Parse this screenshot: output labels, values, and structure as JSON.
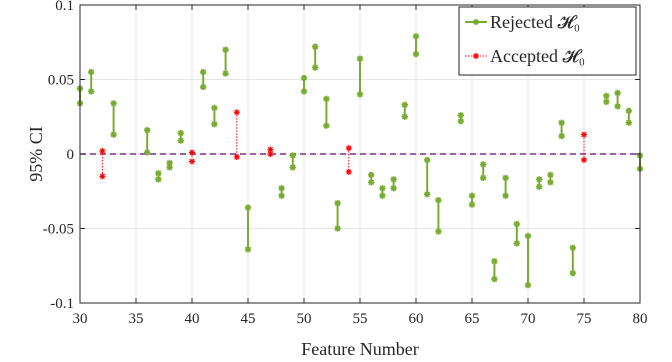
{
  "chart_data": {
    "type": "errorbar-interval",
    "xlabel": "Feature Number",
    "ylabel": "95% CI",
    "xlim": [
      30,
      80
    ],
    "ylim": [
      -0.1,
      0.1
    ],
    "xticks": [
      30,
      35,
      40,
      45,
      50,
      55,
      60,
      65,
      70,
      75,
      80
    ],
    "yticks": [
      -0.1,
      -0.05,
      0,
      0.05,
      0.1
    ],
    "ytick_labels": [
      "-0.1",
      "-0.05",
      "0",
      "0.05",
      "0.1"
    ],
    "grid": true,
    "legend_position": "top-right",
    "reference_line": {
      "y": 0,
      "style": "dashed",
      "color": "#7e2f8e"
    },
    "series": [
      {
        "name": "Rejected 𝓗₀",
        "color": "#77ac30",
        "style": "solid",
        "intervals": [
          {
            "x": 30,
            "low": 0.034,
            "high": 0.044
          },
          {
            "x": 31,
            "low": 0.042,
            "high": 0.055
          },
          {
            "x": 33,
            "low": 0.013,
            "high": 0.034
          },
          {
            "x": 36,
            "low": 0.001,
            "high": 0.016
          },
          {
            "x": 37,
            "low": -0.017,
            "high": -0.013
          },
          {
            "x": 38,
            "low": -0.009,
            "high": -0.006
          },
          {
            "x": 39,
            "low": 0.009,
            "high": 0.014
          },
          {
            "x": 41,
            "low": 0.045,
            "high": 0.055
          },
          {
            "x": 42,
            "low": 0.02,
            "high": 0.031
          },
          {
            "x": 43,
            "low": 0.054,
            "high": 0.07
          },
          {
            "x": 45,
            "low": -0.064,
            "high": -0.036
          },
          {
            "x": 48,
            "low": -0.028,
            "high": -0.023
          },
          {
            "x": 49,
            "low": -0.009,
            "high": -0.001
          },
          {
            "x": 50,
            "low": 0.042,
            "high": 0.051
          },
          {
            "x": 51,
            "low": 0.058,
            "high": 0.072
          },
          {
            "x": 52,
            "low": 0.019,
            "high": 0.037
          },
          {
            "x": 53,
            "low": -0.05,
            "high": -0.033
          },
          {
            "x": 55,
            "low": 0.04,
            "high": 0.064
          },
          {
            "x": 56,
            "low": -0.019,
            "high": -0.014
          },
          {
            "x": 57,
            "low": -0.028,
            "high": -0.023
          },
          {
            "x": 58,
            "low": -0.023,
            "high": -0.017
          },
          {
            "x": 59,
            "low": 0.025,
            "high": 0.033
          },
          {
            "x": 60,
            "low": 0.067,
            "high": 0.079
          },
          {
            "x": 61,
            "low": -0.027,
            "high": -0.004
          },
          {
            "x": 62,
            "low": -0.052,
            "high": -0.031
          },
          {
            "x": 64,
            "low": 0.022,
            "high": 0.026
          },
          {
            "x": 65,
            "low": -0.034,
            "high": -0.028
          },
          {
            "x": 66,
            "low": -0.016,
            "high": -0.007
          },
          {
            "x": 67,
            "low": -0.084,
            "high": -0.072
          },
          {
            "x": 68,
            "low": -0.028,
            "high": -0.016
          },
          {
            "x": 69,
            "low": -0.06,
            "high": -0.047
          },
          {
            "x": 70,
            "low": -0.088,
            "high": -0.055
          },
          {
            "x": 71,
            "low": -0.022,
            "high": -0.017
          },
          {
            "x": 72,
            "low": -0.019,
            "high": -0.014
          },
          {
            "x": 73,
            "low": 0.012,
            "high": 0.021
          },
          {
            "x": 74,
            "low": -0.08,
            "high": -0.063
          },
          {
            "x": 77,
            "low": 0.035,
            "high": 0.039
          },
          {
            "x": 78,
            "low": 0.032,
            "high": 0.041
          },
          {
            "x": 79,
            "low": 0.021,
            "high": 0.029
          },
          {
            "x": 80,
            "low": -0.01,
            "high": -0.001
          }
        ]
      },
      {
        "name": "Accepted 𝓗₀",
        "color": "#ff0000",
        "style": "dotted",
        "intervals": [
          {
            "x": 32,
            "low": -0.015,
            "high": 0.002
          },
          {
            "x": 40,
            "low": -0.005,
            "high": 0.001
          },
          {
            "x": 44,
            "low": -0.002,
            "high": 0.028
          },
          {
            "x": 47,
            "low": 0.0,
            "high": 0.003
          },
          {
            "x": 54,
            "low": -0.012,
            "high": 0.004
          },
          {
            "x": 75,
            "low": -0.004,
            "high": 0.013
          }
        ]
      }
    ]
  }
}
